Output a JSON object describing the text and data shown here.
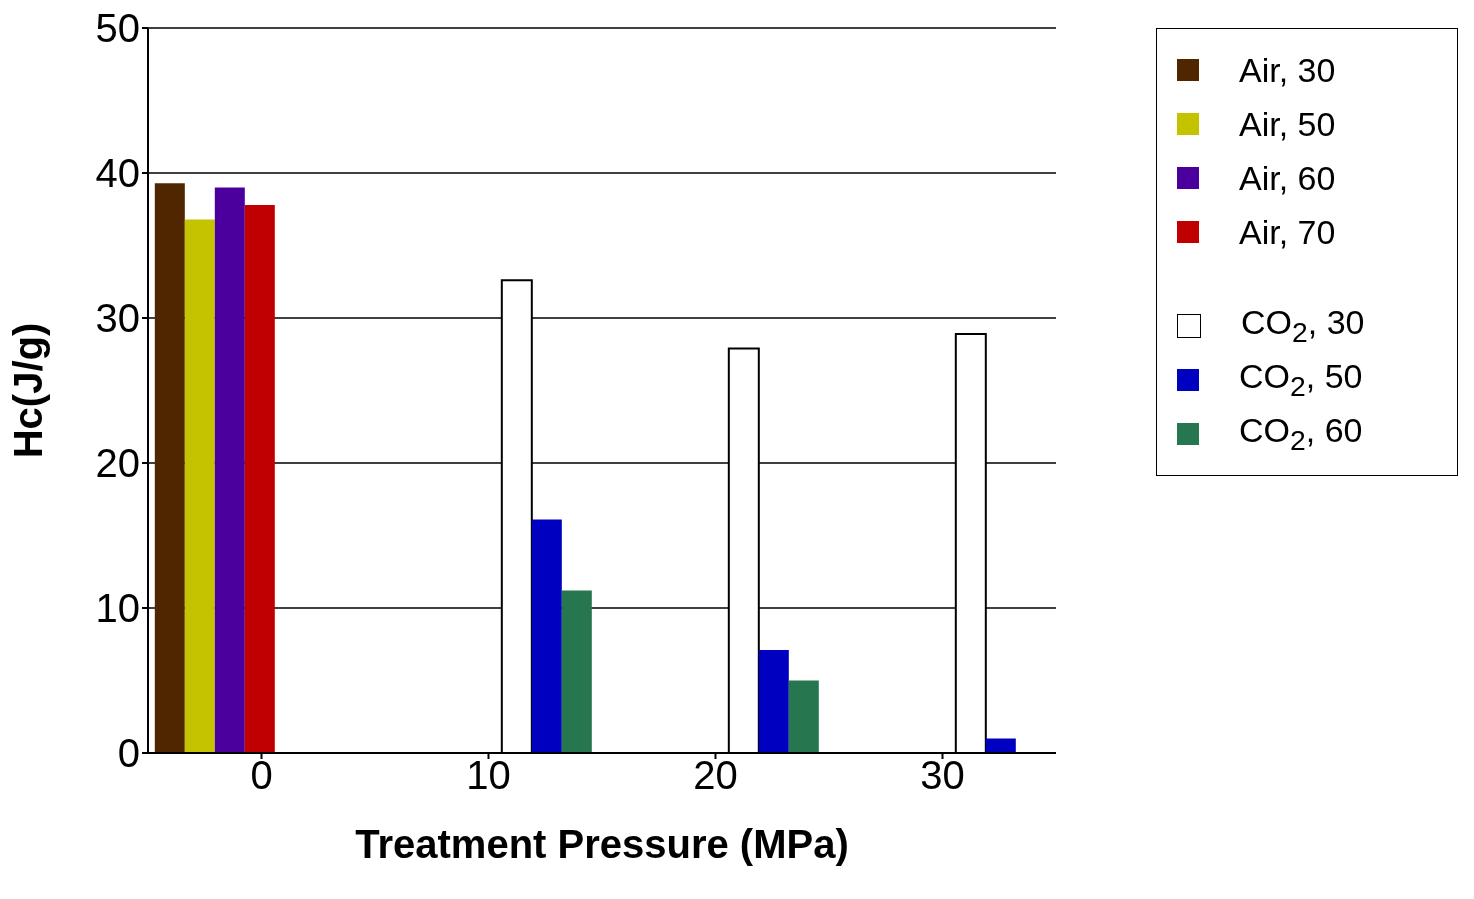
{
  "chart_data": {
    "type": "bar",
    "xlabel": "Treatment Pressure (MPa)",
    "ylabel": "Hc(J/g)",
    "categories": [
      "0",
      "10",
      "20",
      "30"
    ],
    "series": [
      {
        "name": "Air, 30",
        "color": "#4f2600",
        "values": [
          39.3,
          null,
          null,
          null
        ]
      },
      {
        "name": "Air, 50",
        "color": "#c5c300",
        "values": [
          36.8,
          null,
          null,
          null
        ]
      },
      {
        "name": "Air, 60",
        "color": "#4b009d",
        "values": [
          39.0,
          null,
          null,
          null
        ]
      },
      {
        "name": "Air, 70",
        "color": "#c00000",
        "values": [
          37.8,
          null,
          null,
          null
        ]
      },
      {
        "name": "CO$_{2}$, 30",
        "color": "#ffffff",
        "values": [
          null,
          32.6,
          27.9,
          28.9
        ]
      },
      {
        "name": "CO$_{2}$, 50",
        "color": "#0000c0",
        "values": [
          null,
          16.1,
          7.1,
          1.0
        ]
      },
      {
        "name": "CO$_{2}$, 60",
        "color": "#267650",
        "values": [
          null,
          11.2,
          5.0,
          null
        ]
      }
    ],
    "ylim": [
      0,
      50
    ],
    "yticks": [
      0,
      10,
      20,
      30,
      40,
      50
    ],
    "grid": "y",
    "legend": "right"
  }
}
